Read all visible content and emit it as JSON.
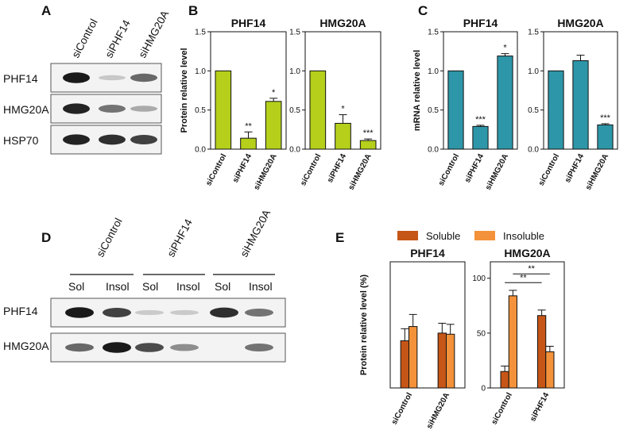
{
  "panel_labels": {
    "A": "A",
    "B": "B",
    "C": "C",
    "D": "D",
    "E": "E"
  },
  "colors": {
    "protein_bar": "#b5cf1b",
    "mrna_bar": "#2d96a8",
    "soluble": "#c65617",
    "insoluble": "#f3923a",
    "band": "#111111",
    "blot_bg": "#f3f3f3"
  },
  "blot_a": {
    "lanes": [
      "siControl",
      "siPHF14",
      "siHMG20A"
    ],
    "rows": [
      {
        "label": "PHF14",
        "intensity": [
          0.95,
          0.05,
          0.55
        ]
      },
      {
        "label": "HMG20A",
        "intensity": [
          0.9,
          0.5,
          0.2
        ]
      },
      {
        "label": "HSP70",
        "intensity": [
          0.9,
          0.85,
          0.75
        ]
      }
    ]
  },
  "blot_d": {
    "groups": [
      "siControl",
      "siPHF14",
      "siHMG20A"
    ],
    "sublanes": [
      "Sol",
      "Insol",
      "Sol",
      "Insol",
      "Sol",
      "Insol"
    ],
    "rows": [
      {
        "label": "PHF14",
        "intensity": [
          0.95,
          0.75,
          0.04,
          0.03,
          0.85,
          0.5
        ]
      },
      {
        "label": "HMG20A",
        "intensity": [
          0.55,
          0.95,
          0.7,
          0.35,
          0.0,
          0.5
        ]
      }
    ]
  },
  "legend_e": {
    "soluble": "Soluble",
    "insoluble": "Insoluble"
  },
  "chart_data": [
    {
      "panel": "B",
      "type": "bar",
      "title": "PHF14",
      "ylabel": "Protein relative level",
      "categories": [
        "siControl",
        "siPHF14",
        "siHMG20A"
      ],
      "values": [
        1.0,
        0.14,
        0.61
      ],
      "errors": [
        0,
        0.08,
        0.04
      ],
      "significance": [
        "",
        "**",
        "*"
      ],
      "ylim": [
        0,
        1.5
      ],
      "yticks": [
        0,
        0.5,
        1.0,
        1.5
      ],
      "ytick_labels": [
        "0.0",
        "0.5",
        "1.0",
        "1.5"
      ],
      "color": "#b5cf1b"
    },
    {
      "panel": "B",
      "type": "bar",
      "title": "HMG20A",
      "ylabel": "",
      "categories": [
        "siControl",
        "siPHF14",
        "siHMG20A"
      ],
      "values": [
        1.0,
        0.33,
        0.11
      ],
      "errors": [
        0,
        0.11,
        0.02
      ],
      "significance": [
        "",
        "*",
        "***"
      ],
      "ylim": [
        0,
        1.5
      ],
      "yticks": [
        0,
        0.5,
        1.0,
        1.5
      ],
      "ytick_labels": [
        "0.0",
        "0.5",
        "1.0",
        "1.5"
      ],
      "color": "#b5cf1b"
    },
    {
      "panel": "C",
      "type": "bar",
      "title": "PHF14",
      "ylabel": "mRNA relative level",
      "categories": [
        "siControl",
        "siPHF14",
        "siHMG20A"
      ],
      "values": [
        1.0,
        0.29,
        1.19
      ],
      "errors": [
        0,
        0.015,
        0.03
      ],
      "significance": [
        "",
        "***",
        "*"
      ],
      "ylim": [
        0,
        1.5
      ],
      "yticks": [
        0,
        0.5,
        1.0,
        1.5
      ],
      "ytick_labels": [
        "0.0",
        "0.5",
        "1.0",
        "1.5"
      ],
      "color": "#2d96a8"
    },
    {
      "panel": "C",
      "type": "bar",
      "title": "HMG20A",
      "ylabel": "",
      "categories": [
        "siControl",
        "siPHF14",
        "siHMG20A"
      ],
      "values": [
        1.0,
        1.13,
        0.31
      ],
      "errors": [
        0,
        0.07,
        0.015
      ],
      "significance": [
        "",
        "",
        "***"
      ],
      "ylim": [
        0,
        1.5
      ],
      "yticks": [
        0,
        0.5,
        1.0,
        1.5
      ],
      "ytick_labels": [
        "0.0",
        "0.5",
        "1.0",
        "1.5"
      ],
      "color": "#2d96a8"
    },
    {
      "panel": "E",
      "type": "bar",
      "title": "PHF14",
      "ylabel": "Protein relative level (%)",
      "categories": [
        "siControl",
        "siHMG20A"
      ],
      "series": [
        {
          "name": "Soluble",
          "values": [
            43,
            50
          ],
          "errors": [
            11,
            9
          ]
        },
        {
          "name": "Insoluble",
          "values": [
            56,
            49
          ],
          "errors": [
            11,
            9
          ]
        }
      ],
      "ylim": [
        0,
        115
      ],
      "yticks": [],
      "ytick_labels": [],
      "brackets": []
    },
    {
      "panel": "E",
      "type": "bar",
      "title": "HMG20A",
      "ylabel": "",
      "categories": [
        "siControl",
        "siPHF14"
      ],
      "series": [
        {
          "name": "Soluble",
          "values": [
            15,
            66
          ],
          "errors": [
            5,
            5
          ]
        },
        {
          "name": "Insoluble",
          "values": [
            84,
            33
          ],
          "errors": [
            5,
            5
          ]
        }
      ],
      "ylim": [
        0,
        115
      ],
      "yticks": [
        0,
        50,
        100
      ],
      "ytick_labels": [
        "0",
        "50",
        "100"
      ],
      "brackets": [
        {
          "from": [
            0,
            0
          ],
          "to": [
            1,
            0
          ],
          "label": "**"
        },
        {
          "from": [
            0,
            1
          ],
          "to": [
            1,
            1
          ],
          "label": "**"
        }
      ]
    }
  ]
}
